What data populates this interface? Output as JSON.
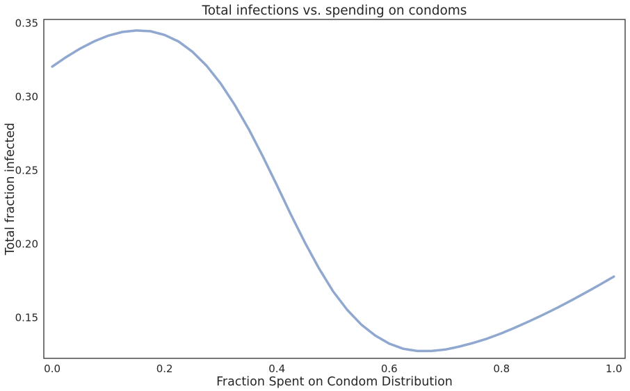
{
  "chart_data": {
    "type": "line",
    "title": "Total infections vs. spending on condoms",
    "xlabel": "Fraction Spent on Condom Distribution",
    "ylabel": "Total fraction infected",
    "xlim": [
      -0.015,
      1.02
    ],
    "ylim": [
      0.1225,
      0.3525
    ],
    "xticks": [
      0.0,
      0.2,
      0.4,
      0.6,
      0.8,
      1.0
    ],
    "xtick_labels": [
      "0.0",
      "0.2",
      "0.4",
      "0.6",
      "0.8",
      "1.0"
    ],
    "yticks": [
      0.15,
      0.2,
      0.25,
      0.3,
      0.35
    ],
    "ytick_labels": [
      "0.15",
      "0.20",
      "0.25",
      "0.30",
      "0.35"
    ],
    "grid": false,
    "legend": "none",
    "line_color": "#90a8d0",
    "series": [
      {
        "x": [
          0.0,
          0.025,
          0.05,
          0.075,
          0.1,
          0.125,
          0.15,
          0.175,
          0.2,
          0.225,
          0.25,
          0.275,
          0.3,
          0.325,
          0.35,
          0.375,
          0.4,
          0.425,
          0.45,
          0.475,
          0.5,
          0.525,
          0.55,
          0.575,
          0.6,
          0.625,
          0.65,
          0.675,
          0.7,
          0.725,
          0.75,
          0.775,
          0.8,
          0.825,
          0.85,
          0.875,
          0.9,
          0.925,
          0.95,
          0.975,
          1.0
        ],
        "y": [
          0.3205,
          0.327,
          0.3328,
          0.3377,
          0.3415,
          0.344,
          0.345,
          0.3445,
          0.342,
          0.3375,
          0.3305,
          0.321,
          0.309,
          0.2945,
          0.278,
          0.2595,
          0.24,
          0.22,
          0.201,
          0.1835,
          0.168,
          0.1555,
          0.1455,
          0.138,
          0.1325,
          0.129,
          0.1275,
          0.1275,
          0.1285,
          0.1305,
          0.133,
          0.136,
          0.1395,
          0.1435,
          0.1478,
          0.1523,
          0.157,
          0.162,
          0.1672,
          0.1725,
          0.178
        ]
      }
    ]
  }
}
